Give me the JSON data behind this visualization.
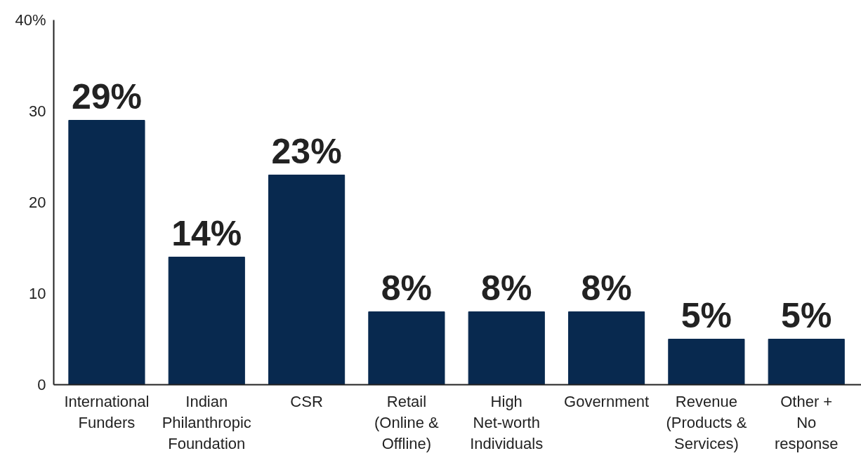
{
  "chart_data": {
    "type": "bar",
    "categories": [
      "International\nFunders",
      "Indian\nPhilanthropic\nFoundation",
      "CSR",
      "Retail\n(Online &\nOffline)",
      "High\nNet-worth\nIndividuals",
      "Government",
      "Revenue\n(Products &\nServices)",
      "Other +\nNo\nresponse"
    ],
    "series": [
      {
        "color": "#08294f",
        "values": [
          29,
          14,
          23,
          8,
          8,
          8,
          5,
          5
        ],
        "value_labels": [
          "29%",
          "14%",
          "23%",
          "8%",
          "8%",
          "8%",
          "5%",
          "5%"
        ]
      }
    ],
    "ylim": [
      0,
      40
    ],
    "yticks": [
      0,
      10,
      20,
      30,
      {
        "value": 40,
        "label": "40%"
      }
    ],
    "grid": false
  }
}
